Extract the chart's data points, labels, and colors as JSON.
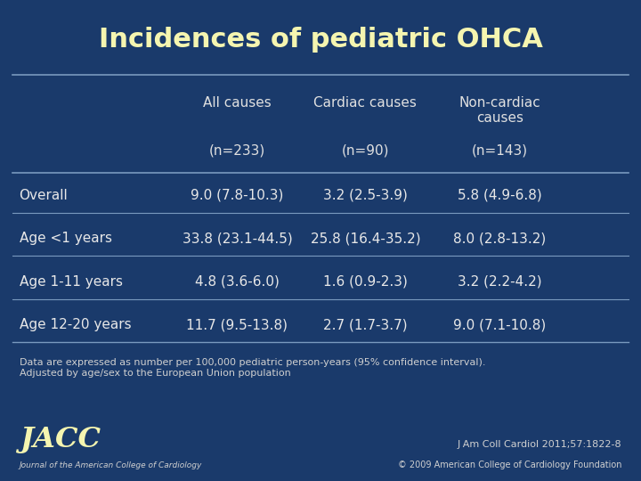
{
  "title": "Incidences of pediatric OHCA",
  "bg_color": "#1a3a6b",
  "title_color": "#f5f5b0",
  "text_color": "#e8e8e8",
  "header_color": "#e0e0e0",
  "footnote_color": "#d0d0d0",
  "line_color": "#7a9abf",
  "col_headers": [
    "",
    "All causes",
    "Cardiac causes",
    "Non-cardiac\ncauses"
  ],
  "col_subheaders": [
    "",
    "(n=233)",
    "(n=90)",
    "(n=143)"
  ],
  "rows": [
    [
      "Overall",
      "9.0 (7.8-10.3)",
      "3.2 (2.5-3.9)",
      "5.8 (4.9-6.8)"
    ],
    [
      "Age <1 years",
      "33.8 (23.1-44.5)",
      "25.8 (16.4-35.2)",
      "8.0 (2.8-13.2)"
    ],
    [
      "Age 1-11 years",
      "4.8 (3.6-6.0)",
      "1.6 (0.9-2.3)",
      "3.2 (2.2-4.2)"
    ],
    [
      "Age 12-20 years",
      "11.7 (9.5-13.8)",
      "2.7 (1.7-3.7)",
      "9.0 (7.1-10.8)"
    ]
  ],
  "footnote": "Data are expressed as number per 100,000 pediatric person-years (95% confidence interval).\nAdjusted by age/sex to the European Union population",
  "jacc_text": "JACC",
  "jacc_sub": "Journal of the American College of Cardiology",
  "citation": "J Am Coll Cardiol 2011;57:1822-8",
  "copyright": "© 2009 American College of Cardiology Foundation"
}
